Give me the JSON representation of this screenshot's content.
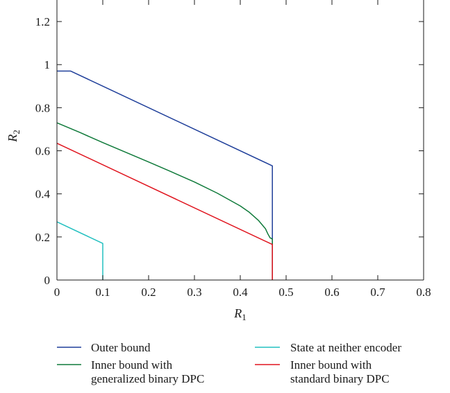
{
  "chart_data": {
    "type": "line",
    "xlabel": "R",
    "xlabel_sub": "1",
    "ylabel": "R",
    "ylabel_sub": "2",
    "xlim": [
      0,
      0.8
    ],
    "ylim": [
      0,
      1.3
    ],
    "xticks": [
      0,
      0.1,
      0.2,
      0.3,
      0.4,
      0.5,
      0.6,
      0.7,
      0.8
    ],
    "xtick_labels": [
      "0",
      "0.1",
      "0.2",
      "0.3",
      "0.4",
      "0.5",
      "0.6",
      "0.7",
      "0.8"
    ],
    "yticks": [
      0,
      0.2,
      0.4,
      0.6,
      0.8,
      1.0,
      1.2
    ],
    "ytick_labels": [
      "0",
      "0.2",
      "0.4",
      "0.6",
      "0.8",
      "1",
      "1.2"
    ],
    "grid": false,
    "legend_position": "below-plot",
    "series": [
      {
        "name": "Outer bound",
        "color": "#1f3f9a",
        "points": [
          [
            0,
            0.97
          ],
          [
            0.03,
            0.97
          ],
          [
            0.47,
            0.53
          ],
          [
            0.47,
            0
          ]
        ]
      },
      {
        "name": "Inner bound with generalized binary DPC",
        "color": "#0f7a3a",
        "points": [
          [
            0,
            0.73
          ],
          [
            0.05,
            0.685
          ],
          [
            0.1,
            0.638
          ],
          [
            0.15,
            0.593
          ],
          [
            0.2,
            0.548
          ],
          [
            0.25,
            0.502
          ],
          [
            0.3,
            0.455
          ],
          [
            0.35,
            0.403
          ],
          [
            0.4,
            0.344
          ],
          [
            0.42,
            0.314
          ],
          [
            0.44,
            0.276
          ],
          [
            0.455,
            0.238
          ],
          [
            0.46,
            0.215
          ],
          [
            0.465,
            0.196
          ],
          [
            0.47,
            0.19
          ],
          [
            0.47,
            0
          ]
        ]
      },
      {
        "name": "State at neither encoder",
        "color": "#22c0c0",
        "points": [
          [
            0,
            0.27
          ],
          [
            0.1,
            0.17
          ],
          [
            0.1,
            0
          ]
        ]
      },
      {
        "name": "Inner bound with standard binary DPC",
        "color": "#e0141e",
        "points": [
          [
            0,
            0.635
          ],
          [
            0.47,
            0.165
          ],
          [
            0.47,
            0
          ]
        ]
      }
    ]
  },
  "legend": {
    "items": [
      {
        "line1": "Outer bound",
        "line2": "",
        "color": "#1f3f9a"
      },
      {
        "line1": "State at neither encoder",
        "line2": "",
        "color": "#22c0c0"
      },
      {
        "line1": "Inner bound with",
        "line2": "generalized binary DPC",
        "color": "#0f7a3a"
      },
      {
        "line1": "Inner bound with",
        "line2": "standard binary DPC",
        "color": "#e0141e"
      }
    ]
  }
}
